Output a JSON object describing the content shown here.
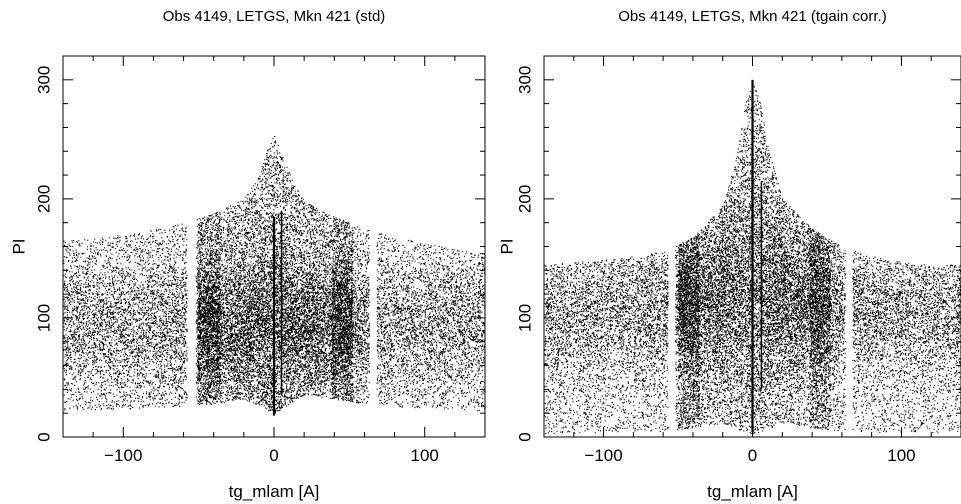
{
  "chart_data": [
    {
      "type": "scatter",
      "title": "Obs 4149, LETGS, Mkn 421 (std)",
      "xlabel": "tg_mlam [A]",
      "ylabel": "PI",
      "xlim": [
        -140,
        140
      ],
      "ylim": [
        0,
        320
      ],
      "xticks": [
        -100,
        0,
        100
      ],
      "xtick_labels": [
        "−100",
        "0",
        "100"
      ],
      "yticks": [
        0,
        100,
        200,
        300
      ],
      "ytick_labels": [
        "0",
        "100",
        "200",
        "300"
      ],
      "grid": false,
      "marker_color": "#000000",
      "point_density": 1.0,
      "band_center": [
        [
          -140,
          96
        ],
        [
          -120,
          94
        ],
        [
          -100,
          93
        ],
        [
          -80,
          92
        ],
        [
          -60,
          92
        ],
        [
          -40,
          93
        ],
        [
          -20,
          95
        ],
        [
          0,
          98
        ],
        [
          20,
          96
        ],
        [
          40,
          94
        ],
        [
          60,
          93
        ],
        [
          80,
          94
        ],
        [
          100,
          96
        ],
        [
          120,
          97
        ],
        [
          140,
          98
        ]
      ],
      "upper_envelope": [
        [
          -140,
          165
        ],
        [
          -120,
          167
        ],
        [
          -100,
          170
        ],
        [
          -80,
          174
        ],
        [
          -60,
          180
        ],
        [
          -40,
          188
        ],
        [
          -20,
          200
        ],
        [
          -10,
          220
        ],
        [
          -5,
          240
        ],
        [
          0,
          255
        ],
        [
          5,
          238
        ],
        [
          10,
          222
        ],
        [
          20,
          198
        ],
        [
          40,
          185
        ],
        [
          60,
          176
        ],
        [
          80,
          168
        ],
        [
          100,
          163
        ],
        [
          120,
          158
        ],
        [
          140,
          155
        ]
      ],
      "lower_envelope": [
        [
          -140,
          22
        ],
        [
          -100,
          24
        ],
        [
          -60,
          26
        ],
        [
          -40,
          28
        ],
        [
          -20,
          32
        ],
        [
          0,
          20
        ],
        [
          20,
          36
        ],
        [
          40,
          32
        ],
        [
          60,
          28
        ],
        [
          100,
          24
        ],
        [
          140,
          22
        ]
      ],
      "gaps_tg_mlam": [
        [
          -58,
          -52
        ],
        [
          63,
          68
        ]
      ],
      "dense_x_ranges": [
        [
          -51,
          -36
        ],
        [
          38,
          52
        ],
        [
          -30,
          40
        ]
      ],
      "zero_order_line": {
        "x": 0,
        "y_range": [
          18,
          185
        ]
      },
      "minor_line": {
        "x": 5,
        "y_range": [
          35,
          190
        ]
      }
    },
    {
      "type": "scatter",
      "title": "Obs 4149, LETGS, Mkn 421 (tgain corr.)",
      "xlabel": "tg_mlam [A]",
      "ylabel": "PI",
      "xlim": [
        -140,
        140
      ],
      "ylim": [
        0,
        320
      ],
      "xticks": [
        -100,
        0,
        100
      ],
      "xtick_labels": [
        "−100",
        "0",
        "100"
      ],
      "yticks": [
        0,
        100,
        200,
        300
      ],
      "ytick_labels": [
        "0",
        "100",
        "200",
        "300"
      ],
      "grid": false,
      "marker_color": "#000000",
      "point_density": 1.0,
      "band_center": [
        [
          -140,
          100
        ],
        [
          -120,
          102
        ],
        [
          -100,
          104
        ],
        [
          -80,
          106
        ],
        [
          -60,
          110
        ],
        [
          -40,
          115
        ],
        [
          -20,
          122
        ],
        [
          0,
          125
        ],
        [
          20,
          122
        ],
        [
          40,
          115
        ],
        [
          60,
          110
        ],
        [
          80,
          106
        ],
        [
          100,
          104
        ],
        [
          120,
          102
        ],
        [
          140,
          100
        ]
      ],
      "upper_envelope": [
        [
          -140,
          145
        ],
        [
          -120,
          147
        ],
        [
          -100,
          149
        ],
        [
          -80,
          152
        ],
        [
          -60,
          156
        ],
        [
          -40,
          168
        ],
        [
          -20,
          195
        ],
        [
          -10,
          240
        ],
        [
          -5,
          280
        ],
        [
          0,
          298
        ],
        [
          5,
          285
        ],
        [
          10,
          245
        ],
        [
          20,
          200
        ],
        [
          40,
          175
        ],
        [
          60,
          160
        ],
        [
          80,
          152
        ],
        [
          100,
          147
        ],
        [
          120,
          145
        ],
        [
          140,
          145
        ]
      ],
      "lower_envelope": [
        [
          -140,
          3
        ],
        [
          -100,
          4
        ],
        [
          -60,
          5
        ],
        [
          -40,
          8
        ],
        [
          -20,
          12
        ],
        [
          0,
          2
        ],
        [
          20,
          12
        ],
        [
          40,
          8
        ],
        [
          60,
          5
        ],
        [
          100,
          4
        ],
        [
          140,
          3
        ]
      ],
      "gaps_tg_mlam": [
        [
          -57,
          -52
        ],
        [
          62,
          67
        ]
      ],
      "dense_x_ranges": [
        [
          -50,
          -36
        ],
        [
          38,
          52
        ],
        [
          -30,
          40
        ]
      ],
      "zero_order_line": {
        "x": 0,
        "y_range": [
          4,
          300
        ]
      },
      "minor_line": {
        "x": 6,
        "y_range": [
          40,
          215
        ]
      }
    }
  ]
}
